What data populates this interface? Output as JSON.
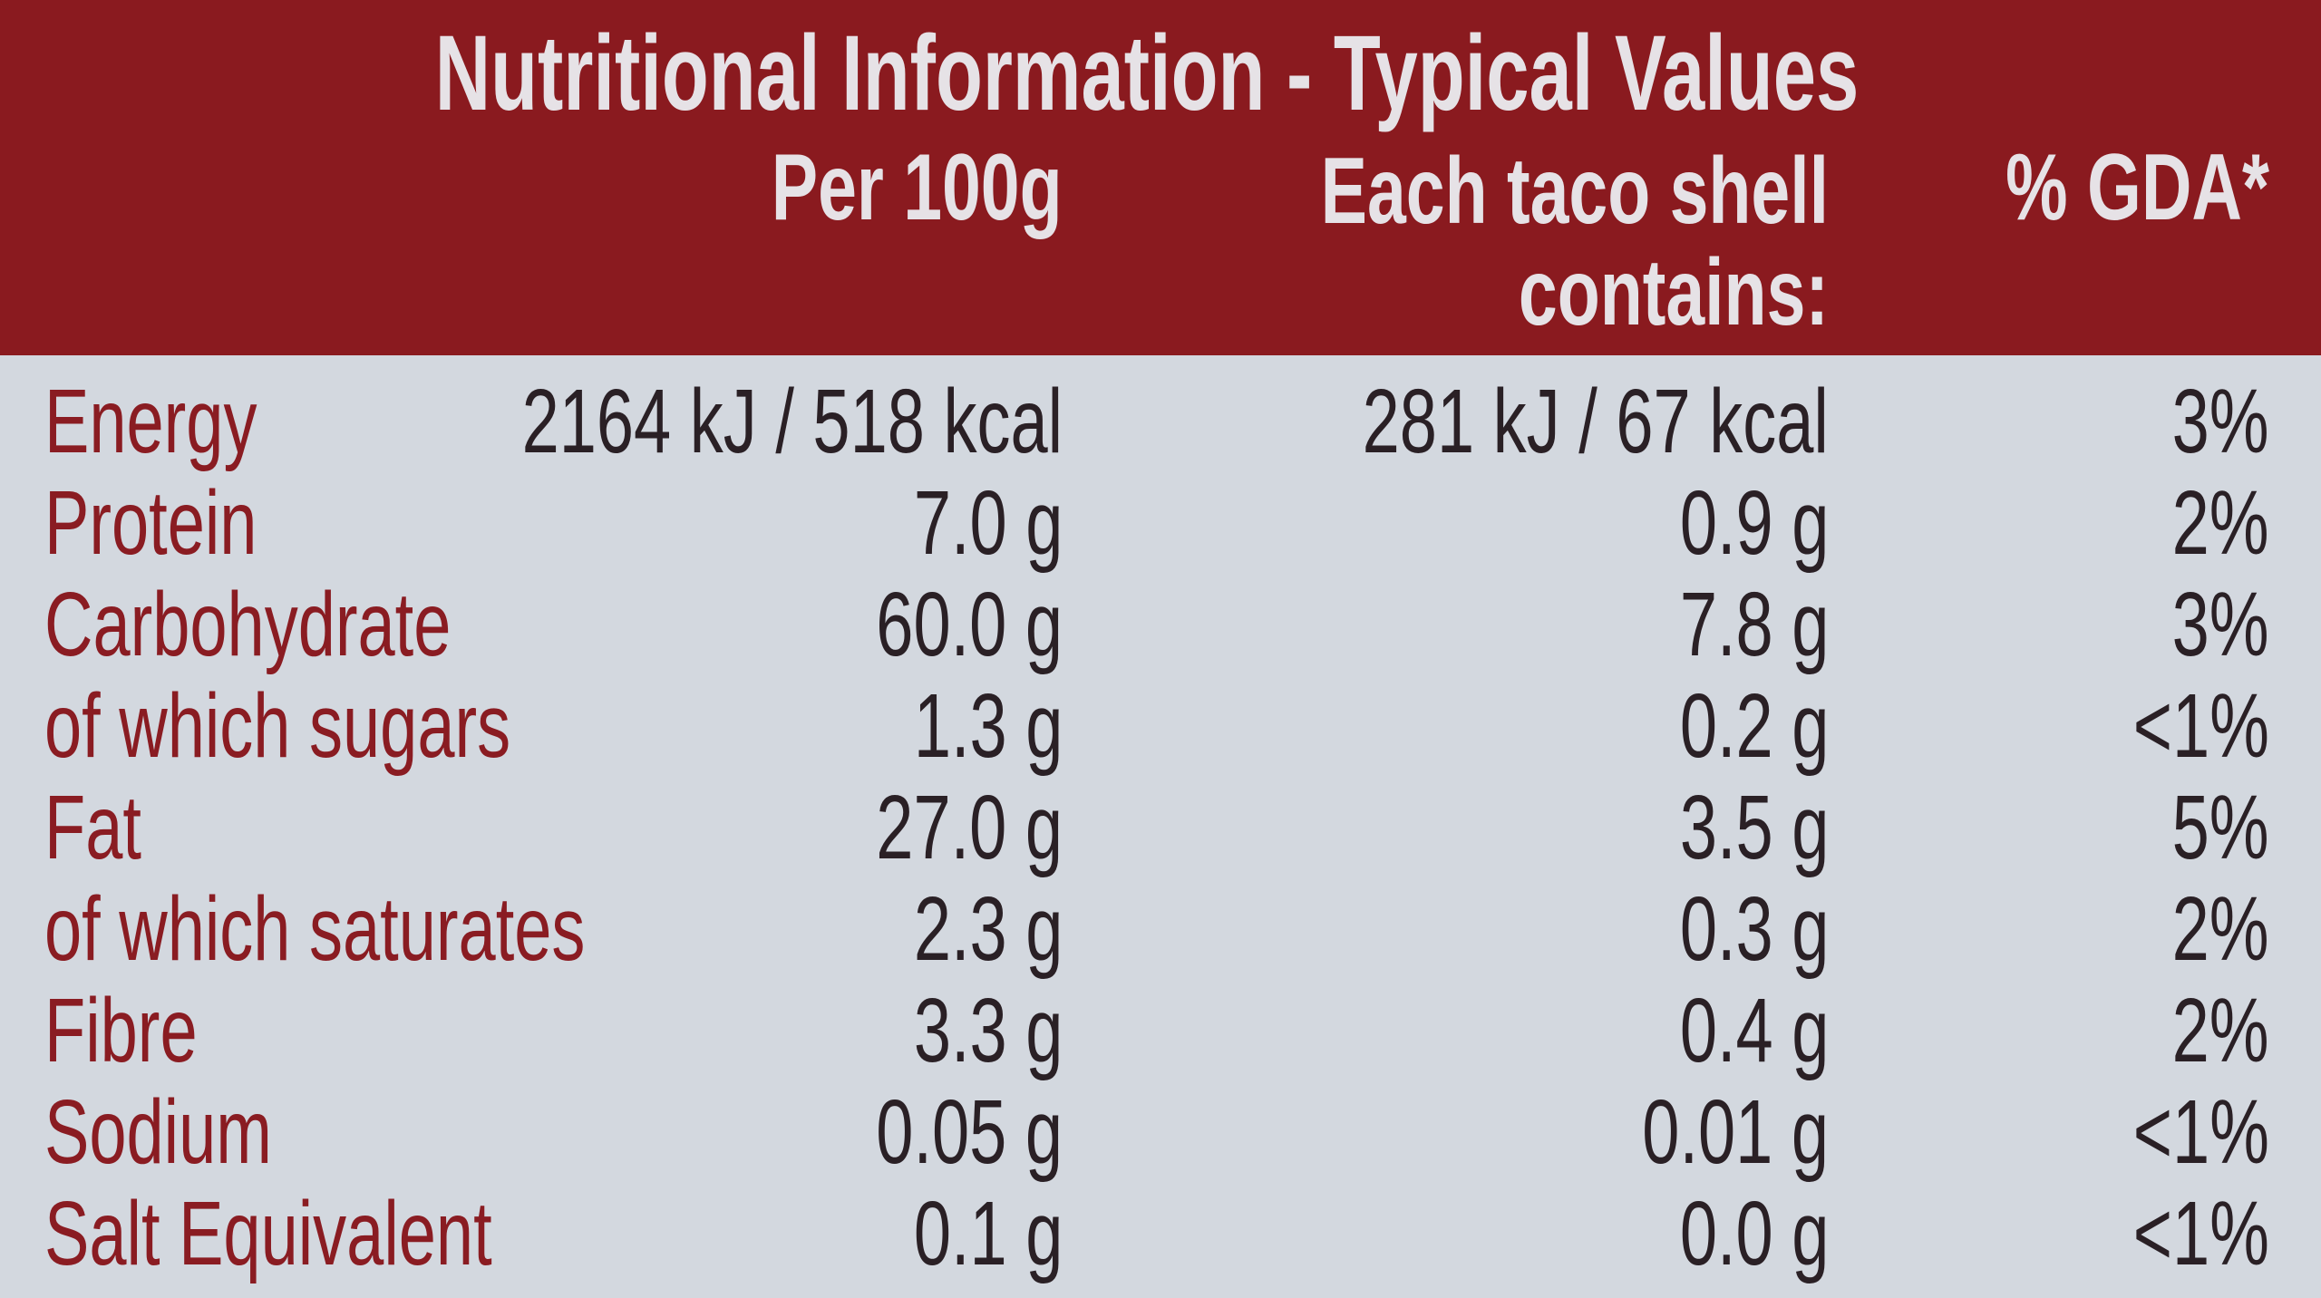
{
  "header": {
    "title": "Nutritional Information - Typical Values",
    "columns": [
      "Per 100g",
      "Each taco shell contains:",
      "% GDA*"
    ]
  },
  "table": {
    "rows": [
      [
        "Energy",
        "2164 kJ / 518 kcal",
        "281 kJ / 67 kcal",
        "3%"
      ],
      [
        "Protein",
        "7.0 g",
        "0.9 g",
        "2%"
      ],
      [
        "Carbohydrate",
        "60.0 g",
        "7.8 g",
        "3%"
      ],
      [
        "of which sugars",
        "1.3 g",
        "0.2 g",
        "<1%"
      ],
      [
        "Fat",
        "27.0 g",
        "3.5 g",
        "5%"
      ],
      [
        "of which saturates",
        "2.3 g",
        "0.3 g",
        "2%"
      ],
      [
        "Fibre",
        "3.3 g",
        "0.4 g",
        "2%"
      ],
      [
        "Sodium",
        "0.05 g",
        "0.01 g",
        "<1%"
      ],
      [
        "Salt Equivalent",
        "0.1 g",
        "0.0 g",
        "<1%"
      ]
    ]
  }
}
